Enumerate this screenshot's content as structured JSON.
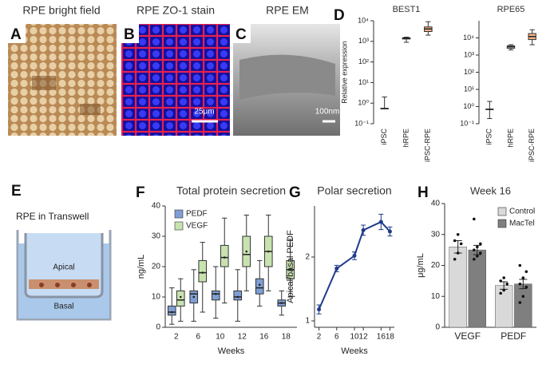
{
  "panels": {
    "a": {
      "letter": "A",
      "title": "RPE bright field"
    },
    "b": {
      "letter": "B",
      "title": "RPE ZO-1 stain",
      "scale_bar": "25μm"
    },
    "c": {
      "letter": "C",
      "title": "RPE EM",
      "scale_bar": "100nm"
    },
    "d": {
      "letter": "D"
    },
    "e": {
      "letter": "E",
      "title": "RPE in Transwell",
      "apical": "Apical",
      "basal": "Basal"
    },
    "f": {
      "letter": "F"
    },
    "g": {
      "letter": "G"
    },
    "h": {
      "letter": "H"
    }
  },
  "chart_data": [
    {
      "type": "box",
      "title": "BEST1",
      "ylabel": "Relative expression",
      "log_y": true,
      "rotate_labels": true,
      "ylim": [
        0.1,
        10000
      ],
      "yticks": [
        {
          "value": 0.1,
          "label": "10⁻¹"
        },
        {
          "value": 1,
          "label": "10⁰"
        },
        {
          "value": 10,
          "label": "10¹"
        },
        {
          "value": 100,
          "label": "10²"
        },
        {
          "value": 1000,
          "label": "10³"
        },
        {
          "value": 10000,
          "label": "10⁴"
        }
      ],
      "categories": [
        "iPSC",
        "hRPE",
        "iPSC-RPE"
      ],
      "series": [
        {
          "colors": [
            "#ffffff",
            "#ffffff",
            "#f4b183"
          ],
          "min": [
            0.55,
            900,
            2000
          ],
          "q1": [
            0.55,
            1300,
            3000
          ],
          "median": [
            0.55,
            1400,
            4000
          ],
          "q3": [
            0.55,
            1500,
            5000
          ],
          "max": [
            2,
            1600,
            9000
          ]
        }
      ]
    },
    {
      "type": "box",
      "title": "RPE65",
      "log_y": true,
      "rotate_labels": true,
      "ylim": [
        0.1,
        100000
      ],
      "yticks": [
        {
          "value": 0.1,
          "label": "10⁻¹"
        },
        {
          "value": 1,
          "label": "10⁰"
        },
        {
          "value": 10,
          "label": "10¹"
        },
        {
          "value": 100,
          "label": "10²"
        },
        {
          "value": 1000,
          "label": "10³"
        },
        {
          "value": 10000,
          "label": "10⁴"
        }
      ],
      "categories": [
        "iPSC",
        "hRPE",
        "iPSC-RPE"
      ],
      "series": [
        {
          "colors": [
            "#ffffff",
            "#ffffff",
            "#f4b183"
          ],
          "min": [
            0.2,
            2000,
            4000
          ],
          "q1": [
            0.7,
            2500,
            8000
          ],
          "median": [
            0.7,
            3000,
            12000
          ],
          "q3": [
            0.7,
            3500,
            18000
          ],
          "max": [
            2,
            4000,
            30000
          ]
        }
      ]
    },
    {
      "type": "box",
      "title": "Total protein secretion",
      "ylabel": "ng/mL",
      "xlabel": "Weeks",
      "legend": "upper left",
      "ylim": [
        0,
        40
      ],
      "yticks": [
        0,
        10,
        20,
        30,
        40
      ],
      "categories": [
        "2",
        "6",
        "10",
        "12",
        "16",
        "18"
      ],
      "series": [
        {
          "name": "PEDF",
          "color": "#7f9fd4",
          "min": [
            1,
            2,
            3,
            2,
            7,
            4
          ],
          "q1": [
            4,
            8,
            9,
            9,
            11,
            7
          ],
          "median": [
            5,
            11,
            11,
            10,
            13,
            8
          ],
          "q3": [
            7,
            12,
            12,
            12,
            16,
            9
          ],
          "max": [
            13,
            19,
            20,
            19,
            22,
            12
          ],
          "mean": [
            5,
            10,
            11,
            10,
            14,
            8
          ]
        },
        {
          "name": "VEGF",
          "color": "#c9e3b0",
          "min": [
            2,
            5,
            8,
            12,
            12,
            10
          ],
          "q1": [
            7,
            15,
            20,
            20,
            20,
            16
          ],
          "median": [
            9,
            18,
            23,
            24,
            25,
            19
          ],
          "q3": [
            12,
            22,
            27,
            30,
            30,
            22
          ],
          "max": [
            16,
            28,
            36,
            37,
            37,
            29
          ],
          "mean": [
            10,
            18,
            23,
            25,
            25,
            19
          ]
        }
      ]
    },
    {
      "type": "line",
      "title": "Polar secretion",
      "ylabel": "Apical/basal PEDF",
      "xlabel": "Weeks",
      "x": [
        2,
        6,
        10,
        12,
        16,
        18
      ],
      "xlim": [
        1,
        19
      ],
      "xticks": [
        2,
        6,
        10,
        12,
        16,
        18
      ],
      "ylim": [
        0.9,
        2.8
      ],
      "yticks": [
        1,
        2
      ],
      "series": [
        {
          "color": "#1f3a8a",
          "values": [
            1.18,
            1.82,
            2.02,
            2.42,
            2.55,
            2.4
          ],
          "errors": [
            0.07,
            0.05,
            0.06,
            0.08,
            0.12,
            0.07
          ]
        }
      ]
    },
    {
      "type": "bar",
      "title": "Week 16",
      "ylabel": "μg/mL",
      "legend": "upper right",
      "ylim": [
        0,
        40
      ],
      "yticks": [
        0,
        10,
        20,
        30,
        40
      ],
      "categories": [
        "VEGF",
        "PEDF"
      ],
      "series": [
        {
          "name": "Control",
          "color": "#d9d9d9",
          "values": [
            26,
            13.5
          ],
          "errors": [
            2,
            1.2
          ],
          "points": [
            [
              22,
              24,
              27,
              28,
              30
            ],
            [
              11,
              12,
              14,
              15,
              16
            ]
          ]
        },
        {
          "name": "MacTel",
          "color": "#7f7f7f",
          "values": [
            25,
            14
          ],
          "errors": [
            1.5,
            1.5
          ],
          "points": [
            [
              22,
              23,
              24,
              25,
              26,
              27,
              35
            ],
            [
              8,
              10,
              13,
              14,
              16,
              18,
              20
            ]
          ]
        }
      ]
    }
  ]
}
